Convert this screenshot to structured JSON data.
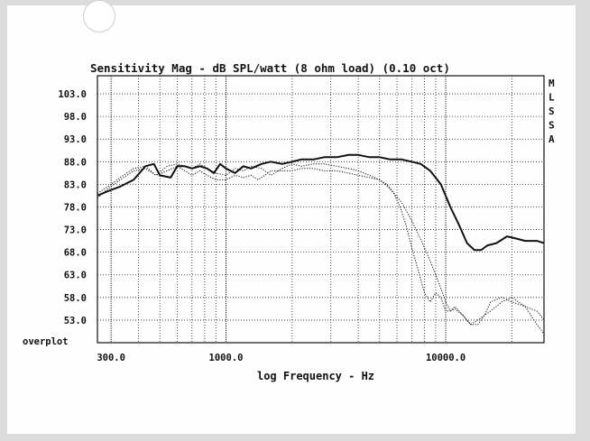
{
  "chart_data": {
    "type": "line",
    "title": "Sensitivity Mag - dB SPL/watt (8 ohm load) (0.10 oct)",
    "xlabel": "log Frequency - Hz",
    "ylabel": "",
    "x_scale": "log",
    "xlim": [
      260,
      28000
    ],
    "ylim": [
      48,
      107
    ],
    "grid": true,
    "x_ticks": [
      300,
      1000,
      10000
    ],
    "x_tick_labels": [
      "300.0",
      "1000.0",
      "10000.0"
    ],
    "y_ticks": [
      53,
      58,
      63,
      68,
      73,
      78,
      83,
      88,
      93,
      98,
      103
    ],
    "y_tick_labels": [
      "53.0",
      "58.0",
      "63.0",
      "68.0",
      "73.0",
      "78.0",
      "83.0",
      "88.0",
      "93.0",
      "98.0",
      "103.0"
    ],
    "bottom_label": "overplot",
    "side_labels": [
      "M",
      "L",
      "S",
      "S",
      "A"
    ],
    "series": [
      {
        "style": "solid",
        "x": [
          260,
          290,
          330,
          380,
          430,
          470,
          500,
          560,
          600,
          650,
          700,
          760,
          820,
          880,
          940,
          1000,
          1100,
          1200,
          1300,
          1450,
          1600,
          1800,
          2000,
          2200,
          2500,
          2800,
          3200,
          3600,
          4000,
          4500,
          5000,
          5600,
          6300,
          7000,
          7700,
          8500,
          9500,
          10500,
          11500,
          12500,
          13500,
          14500,
          15500,
          17000,
          19000,
          21000,
          23000,
          26000,
          28000
        ],
        "values": [
          80.5,
          81.5,
          82.5,
          84.0,
          87.0,
          87.5,
          85.0,
          84.5,
          87.0,
          87.0,
          86.5,
          87.0,
          86.5,
          85.5,
          87.5,
          86.5,
          85.5,
          87.0,
          86.5,
          87.5,
          88.0,
          87.5,
          88.0,
          88.5,
          88.5,
          89.0,
          89.0,
          89.5,
          89.5,
          89.0,
          89.0,
          88.5,
          88.5,
          88.0,
          87.5,
          86.0,
          83.0,
          78.0,
          74.0,
          70.0,
          68.5,
          68.5,
          69.5,
          70.0,
          71.5,
          71.0,
          70.5,
          70.5,
          70.0
        ]
      },
      {
        "style": "dotted",
        "x": [
          260,
          290,
          330,
          380,
          430,
          480,
          540,
          600,
          650,
          700,
          760,
          820,
          900,
          1000,
          1100,
          1200,
          1300,
          1450,
          1600,
          1800,
          2000,
          2200,
          2500,
          2800,
          3200,
          3600,
          4000,
          4500,
          5000,
          5600,
          6300,
          7000,
          7500,
          8000,
          8500,
          9000,
          9500,
          10000,
          10500,
          11000,
          12000,
          13000,
          14000,
          16000,
          18000,
          20000,
          23000,
          26000,
          28000
        ],
        "values": [
          81.0,
          82.5,
          84.5,
          86.5,
          87.0,
          85.0,
          87.0,
          87.5,
          87.0,
          86.5,
          87.5,
          86.5,
          85.5,
          85.0,
          86.5,
          86.0,
          87.0,
          86.5,
          85.0,
          86.5,
          87.5,
          87.0,
          87.5,
          87.5,
          87.0,
          86.5,
          86.0,
          85.0,
          84.0,
          82.0,
          79.0,
          75.0,
          72.0,
          69.0,
          66.0,
          63.0,
          60.0,
          57.0,
          55.0,
          55.5,
          54.0,
          52.0,
          53.0,
          55.0,
          57.0,
          58.0,
          56.0,
          52.0,
          50.0
        ]
      },
      {
        "style": "dotted",
        "x": [
          260,
          290,
          330,
          380,
          430,
          480,
          540,
          600,
          650,
          700,
          760,
          820,
          900,
          1000,
          1100,
          1200,
          1300,
          1400,
          1500,
          1600,
          1800,
          2000,
          2200,
          2500,
          2800,
          3200,
          3600,
          4000,
          4500,
          5000,
          5400,
          5800,
          6200,
          6600,
          7000,
          7500,
          8000,
          8500,
          9000,
          9500,
          10000,
          10500,
          11000,
          12000,
          13000,
          14000,
          15000,
          16000,
          18000,
          20000,
          23000,
          26000,
          28000
        ],
        "values": [
          80.0,
          82.0,
          84.0,
          86.0,
          86.5,
          85.0,
          86.0,
          87.0,
          86.0,
          85.0,
          86.0,
          85.0,
          84.0,
          84.0,
          85.0,
          84.5,
          85.0,
          84.0,
          85.0,
          86.0,
          86.0,
          86.0,
          86.5,
          86.5,
          86.0,
          86.0,
          85.5,
          85.0,
          84.5,
          84.0,
          83.0,
          81.0,
          78.0,
          74.0,
          69.0,
          64.0,
          59.0,
          57.0,
          59.0,
          58.0,
          55.0,
          55.0,
          56.0,
          54.0,
          52.0,
          52.0,
          54.0,
          57.0,
          58.0,
          57.0,
          56.0,
          55.0,
          53.0
        ]
      }
    ]
  }
}
